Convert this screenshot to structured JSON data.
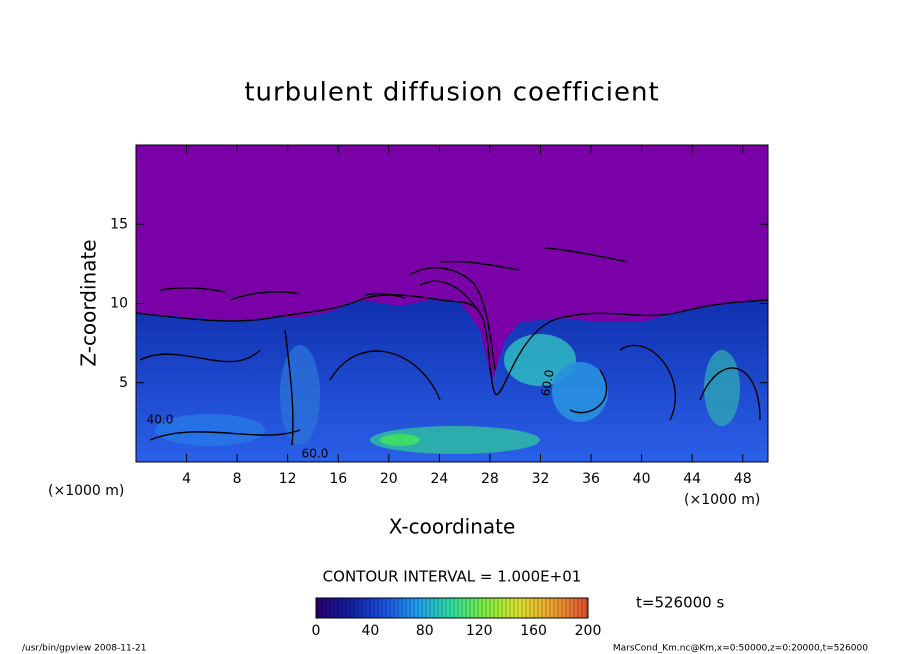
{
  "chart_data": {
    "type": "contour",
    "title": "turbulent diffusion coefficient",
    "x_label": "X-coordinate",
    "y_label": "Z-coordinate",
    "x_unit": "(×1000 m)",
    "y_unit": "(×1000 m)",
    "xlim": [
      0,
      50
    ],
    "ylim": [
      0,
      20
    ],
    "xticks": [
      4,
      8,
      12,
      16,
      20,
      24,
      28,
      32,
      36,
      40,
      44,
      48
    ],
    "yticks": [
      5,
      10,
      15
    ],
    "contour_interval": "CONTOUR INTERVAL = 1.000E+01",
    "contour_labels": [
      {
        "value": 40,
        "label": "40.0"
      },
      {
        "value": 60,
        "label": "60.0"
      },
      {
        "value": 60,
        "label": "60.0"
      }
    ],
    "colorbar": {
      "lim": [
        0,
        200
      ],
      "ticks": [
        0,
        40,
        80,
        120,
        160,
        200
      ],
      "colors": [
        "#2a0070",
        "#1020a0",
        "#1e50e0",
        "#20a0f0",
        "#30e0a0",
        "#80f040",
        "#e0e030",
        "#f0a030",
        "#e05030"
      ]
    },
    "time_label": "t=526000 s"
  },
  "footer": {
    "left": "/usr/bin/gpview  2008-11-21",
    "right": "MarsCond_Km.nc@Km,x=0:50000,z=0:20000,t=526000"
  }
}
